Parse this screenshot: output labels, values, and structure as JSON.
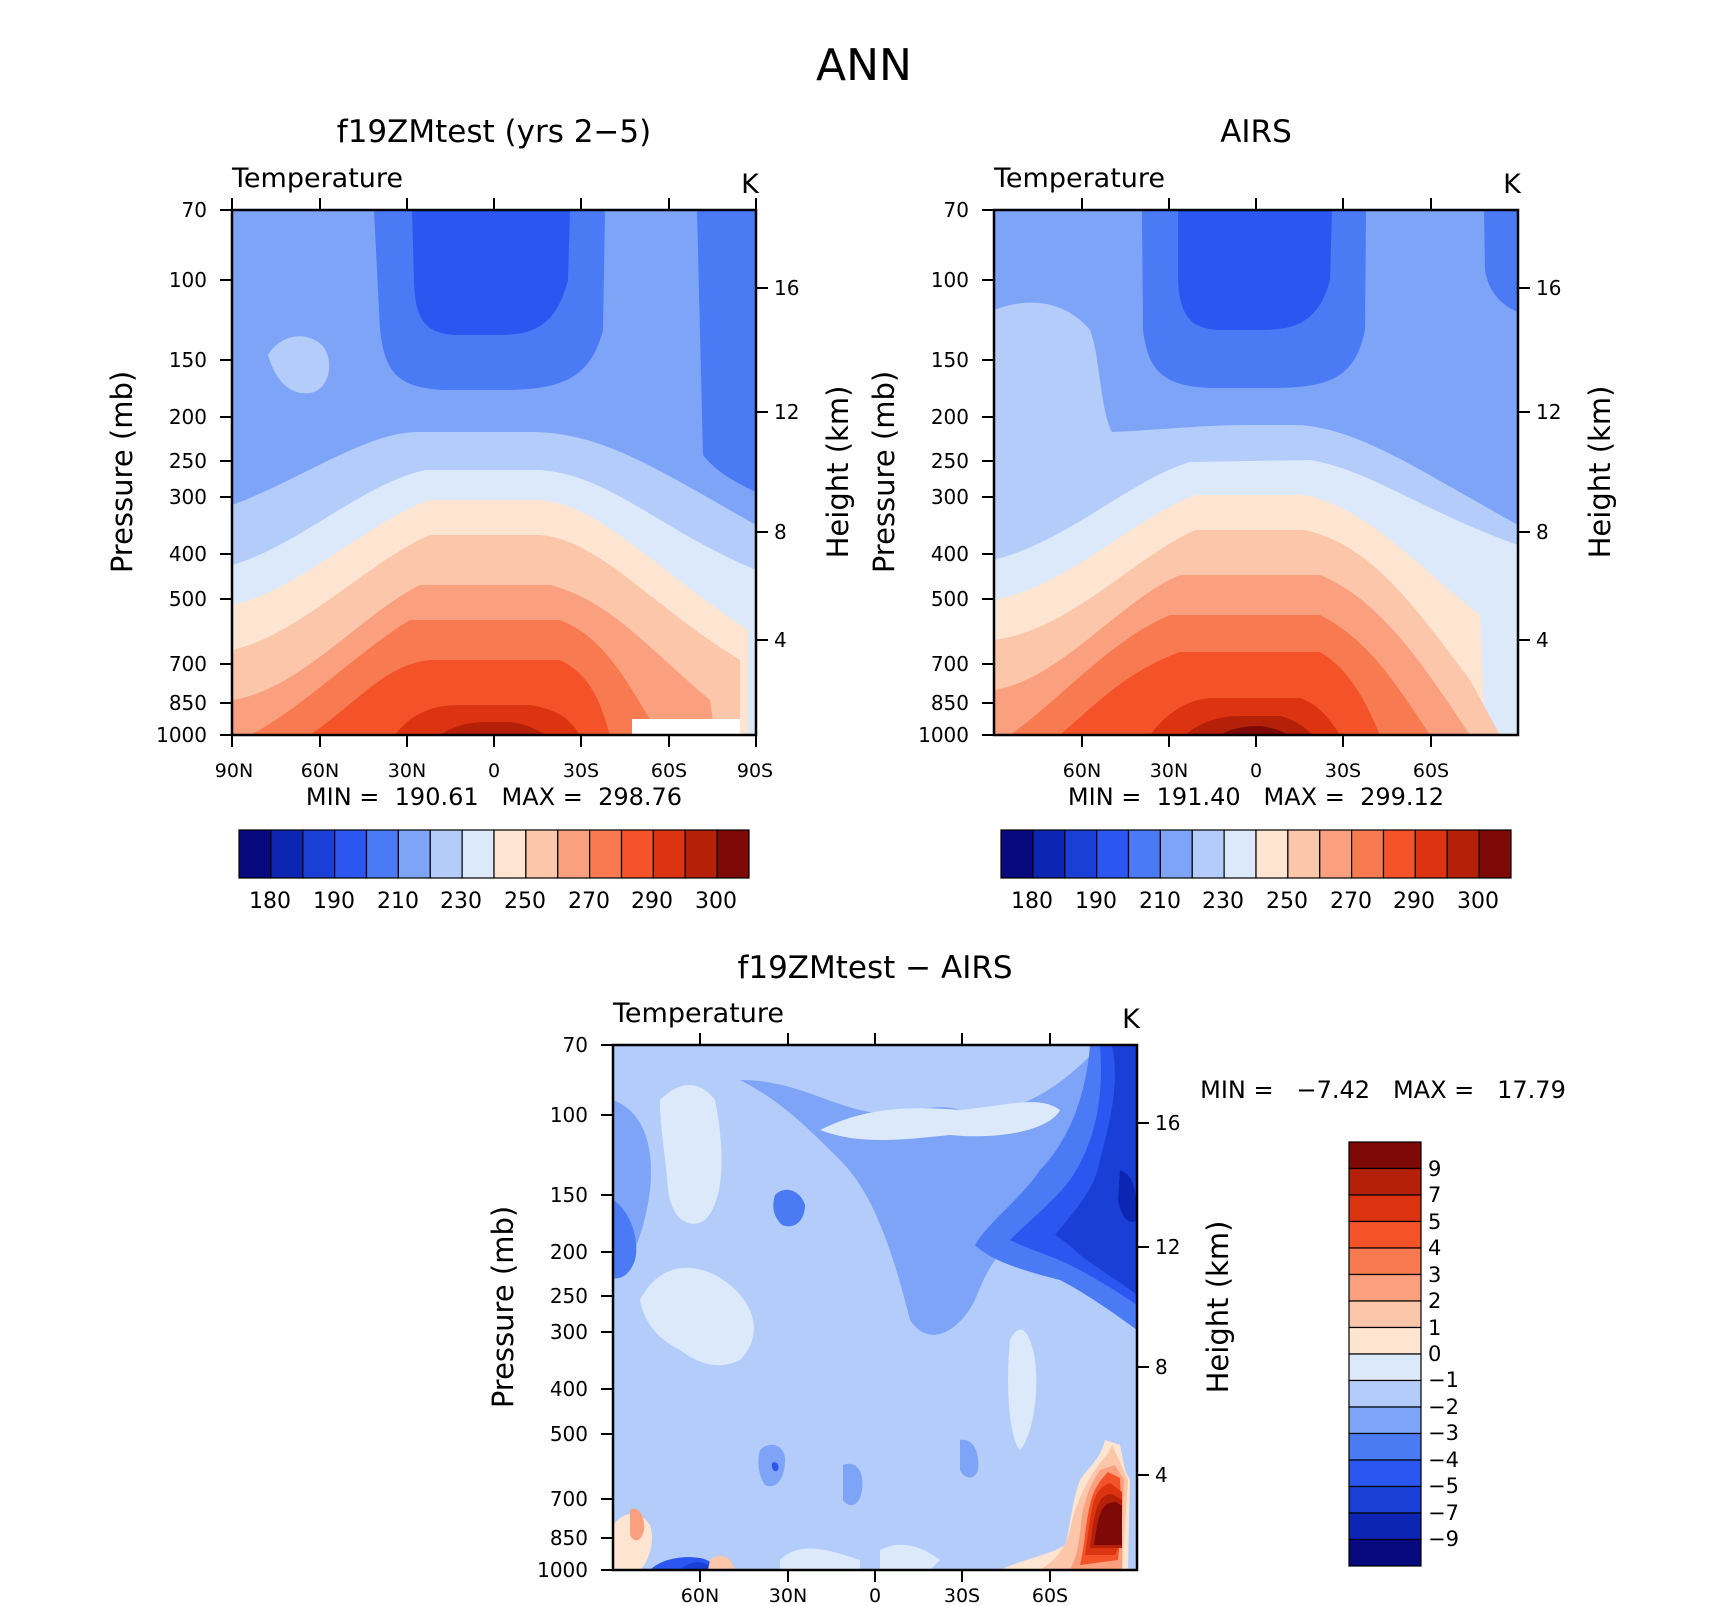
{
  "figure": {
    "title": "ANN"
  },
  "panels": {
    "left": {
      "title": "f19ZMtest (yrs 2−5)",
      "variable": "Temperature",
      "units": "K",
      "stats": "MIN =  190.61   MAX =  298.76",
      "ylabel": "Pressure (mb)",
      "ylabel_right": "Height (km)"
    },
    "right": {
      "title": "AIRS",
      "variable": "Temperature",
      "units": "K",
      "stats": "MIN =  191.40   MAX =  299.12",
      "ylabel": "Pressure (mb)",
      "ylabel_right": "Height (km)"
    },
    "diff": {
      "title": "f19ZMtest − AIRS",
      "variable": "Temperature",
      "units": "K",
      "stats": "MIN =   −7.42   MAX =   17.79",
      "ylabel": "Pressure (mb)",
      "ylabel_right": "Height (km)"
    }
  },
  "colors": {
    "temperature_bar": [
      "#08087f",
      "#0c25b2",
      "#1a3fd6",
      "#2b57f0",
      "#4a7af4",
      "#7ea4f8",
      "#b3ccfa",
      "#dce9fb",
      "#fde5d2",
      "#fcc6ab",
      "#faa07e",
      "#f77a51",
      "#f4532a",
      "#dc3310",
      "#b42008",
      "#7d0a06"
    ],
    "difference_bar": [
      "#08087f",
      "#0c25b2",
      "#1a3fd6",
      "#2b57f0",
      "#4a7af4",
      "#7ea4f8",
      "#b3ccfa",
      "#dce9fb",
      "#fde5d2",
      "#fcc6ab",
      "#faa07e",
      "#f77a51",
      "#f4532a",
      "#dc3310",
      "#b42008",
      "#7d0a06"
    ]
  },
  "chart_data": [
    {
      "type": "heatmap",
      "title": "f19ZMtest (yrs 2−5)",
      "subtitle": "Temperature",
      "units": "K",
      "xlabel": "",
      "ylabel": "Pressure (mb)",
      "ylabel_right": "Height (km)",
      "x_ticks": [
        "90N",
        "60N",
        "30N",
        "0",
        "30S",
        "60S",
        "90S"
      ],
      "x_range": [
        90,
        -90
      ],
      "y_ticks": [
        "70",
        "100",
        "150",
        "200",
        "250",
        "300",
        "400",
        "500",
        "700",
        "850",
        "1000"
      ],
      "y_scale": "log",
      "y_range": [
        70,
        1000
      ],
      "y_right_ticks": [
        "16",
        "12",
        "8",
        "4"
      ],
      "colorbar_labels": [
        "180",
        "190",
        "210",
        "230",
        "250",
        "270",
        "290",
        "300"
      ],
      "min": 190.61,
      "max": 298.76
    },
    {
      "type": "heatmap",
      "title": "AIRS",
      "subtitle": "Temperature",
      "units": "K",
      "xlabel": "",
      "ylabel": "Pressure (mb)",
      "ylabel_right": "Height (km)",
      "x_ticks": [
        "60N",
        "30N",
        "0",
        "30S",
        "60S"
      ],
      "x_range": [
        90,
        -90
      ],
      "y_ticks": [
        "70",
        "100",
        "150",
        "200",
        "250",
        "300",
        "400",
        "500",
        "700",
        "850",
        "1000"
      ],
      "y_scale": "log",
      "y_range": [
        70,
        1000
      ],
      "y_right_ticks": [
        "16",
        "12",
        "8",
        "4"
      ],
      "colorbar_labels": [
        "180",
        "190",
        "210",
        "230",
        "250",
        "270",
        "290",
        "300"
      ],
      "min": 191.4,
      "max": 299.12
    },
    {
      "type": "heatmap",
      "title": "f19ZMtest − AIRS",
      "subtitle": "Temperature",
      "units": "K",
      "xlabel": "",
      "ylabel": "Pressure (mb)",
      "ylabel_right": "Height (km)",
      "x_ticks": [
        "60N",
        "30N",
        "0",
        "30S",
        "60S"
      ],
      "x_range": [
        90,
        -90
      ],
      "y_ticks": [
        "70",
        "100",
        "150",
        "200",
        "250",
        "300",
        "400",
        "500",
        "700",
        "850",
        "1000"
      ],
      "y_scale": "log",
      "y_range": [
        70,
        1000
      ],
      "y_right_ticks": [
        "16",
        "12",
        "8",
        "4"
      ],
      "colorbar_labels": [
        "9",
        "7",
        "5",
        "4",
        "3",
        "2",
        "1",
        "0",
        "−1",
        "−2",
        "−3",
        "−4",
        "−5",
        "−7",
        "−9"
      ],
      "min": -7.42,
      "max": 17.79
    }
  ]
}
